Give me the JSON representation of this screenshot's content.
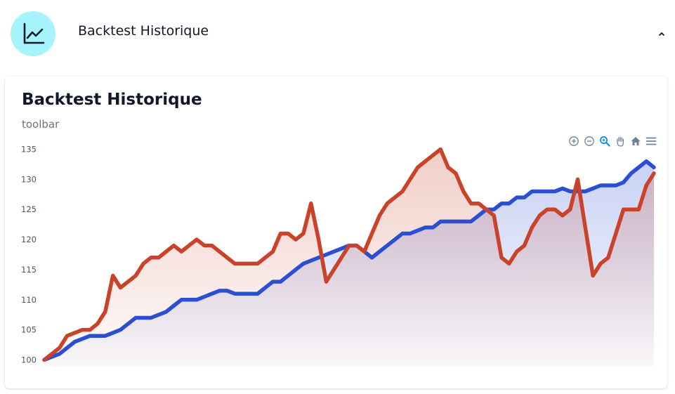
{
  "header": {
    "title": "Backtest Historique",
    "icon": "line-chart-icon",
    "collapse_icon": "chevron-up-icon"
  },
  "card": {
    "title": "Backtest Historique",
    "subtitle": "toolbar"
  },
  "toolbar": {
    "buttons": [
      "zoom-in-icon",
      "zoom-out-icon",
      "selection-zoom-icon",
      "pan-hand-icon",
      "reset-home-icon",
      "menu-icon"
    ],
    "active_button": "selection-zoom-icon"
  },
  "colors": {
    "accent_avatar": "#a5f3fc",
    "series_blue": "#2a4fd0",
    "series_red": "#c9432b",
    "toolbar_icon": "#6e8192",
    "toolbar_active": "#008ffb"
  },
  "chart_data": {
    "type": "area",
    "yticks": [
      100,
      105,
      110,
      115,
      120,
      125,
      130,
      135
    ],
    "ylim": [
      99,
      136
    ],
    "grid": false,
    "x": [
      0,
      1,
      2,
      3,
      4,
      5,
      6,
      7,
      8,
      9,
      10,
      11,
      12,
      13,
      14,
      15,
      16,
      17,
      18,
      19,
      20,
      21,
      22,
      23,
      24,
      25,
      26,
      27,
      28,
      29,
      30,
      31,
      32,
      33,
      34,
      35,
      36,
      37,
      38,
      39,
      40,
      41,
      42,
      43,
      44,
      45,
      46,
      47,
      48,
      49,
      50,
      51,
      52,
      53,
      54,
      55,
      56,
      57,
      58,
      59,
      60,
      61,
      62,
      63,
      64,
      65,
      66,
      67,
      68,
      69,
      70,
      71,
      72,
      73,
      74,
      75,
      76,
      77,
      78,
      79,
      80
    ],
    "series": [
      {
        "color": "#2a4fd0",
        "values": [
          100,
          100.5,
          101,
          102,
          103,
          103.5,
          104,
          104,
          104,
          104.5,
          105,
          106,
          107,
          107,
          107,
          107.5,
          108,
          109,
          110,
          110,
          110,
          110.5,
          111,
          111.5,
          111.5,
          111,
          111,
          111,
          111,
          112,
          113,
          113,
          114,
          115,
          116,
          116.5,
          117,
          117.5,
          118,
          118.5,
          119,
          119,
          118,
          117,
          118,
          119,
          120,
          121,
          121,
          121.5,
          122,
          122,
          123,
          123,
          123,
          123,
          123,
          124,
          125,
          125,
          126,
          126,
          127,
          127,
          128,
          128,
          128,
          128,
          128.5,
          128,
          128,
          128,
          128.5,
          129,
          129,
          129,
          129.5,
          131,
          132,
          133,
          132
        ]
      },
      {
        "color": "#c9432b",
        "values": [
          100,
          101,
          102,
          104,
          104.5,
          105,
          105,
          106,
          108,
          114,
          112,
          113,
          114,
          116,
          117,
          117,
          118,
          119,
          118,
          119,
          120,
          119,
          119,
          118,
          117,
          116,
          116,
          116,
          116,
          117,
          118,
          121,
          121,
          120,
          121,
          126,
          120,
          113,
          115,
          117,
          119,
          119,
          118,
          121,
          124,
          126,
          127,
          128,
          130,
          132,
          133,
          134,
          135,
          132,
          131,
          128,
          126,
          126,
          125,
          124,
          117,
          116,
          118,
          119,
          122,
          124,
          125,
          125,
          124,
          125,
          130,
          122,
          114,
          116,
          117,
          121,
          125,
          125,
          125,
          129,
          131
        ]
      }
    ]
  }
}
